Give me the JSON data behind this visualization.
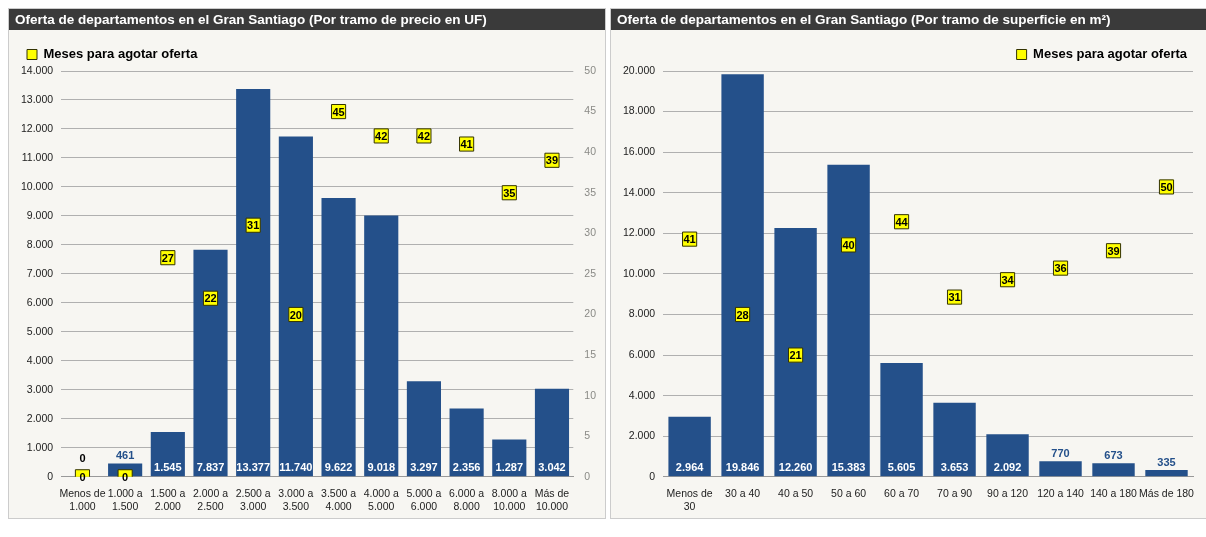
{
  "chart_data": [
    {
      "type": "bar",
      "title": "Oferta de departamentos en el Gran Santiago (Por tramo de precio en UF)",
      "categories": [
        "Menos de 1.000",
        "1.000 a 1.500",
        "1.500 a 2.000",
        "2.000 a 2.500",
        "2.500 a 3.000",
        "3.000 a 3.500",
        "3.500 a 4.000",
        "4.000 a 5.000",
        "5.000 a 6.000",
        "6.000 a 8.000",
        "8.000 a 10.000",
        "Más de 10.000"
      ],
      "series": [
        {
          "color": "#24508a",
          "values": [
            0,
            461,
            1545,
            7837,
            13377,
            11740,
            9622,
            9018,
            3297,
            2356,
            1287,
            3042
          ],
          "value_labels": [
            "0",
            "461",
            "1.545",
            "7.837",
            "13.377",
            "11.740",
            "9.622",
            "9.018",
            "3.297",
            "2.356",
            "1.287",
            "3.042"
          ]
        },
        {
          "type": "scatter",
          "name": "Meses para agotar oferta",
          "color": "#ffff00",
          "axis": "y2",
          "values": [
            0,
            0,
            27,
            22,
            31,
            20,
            45,
            42,
            42,
            41,
            35,
            39
          ],
          "value_labels": [
            "0",
            "0",
            "27",
            "22",
            "31",
            "20",
            "45",
            "42",
            "42",
            "41",
            "35",
            "39"
          ]
        }
      ],
      "ylim": [
        0,
        14000
      ],
      "yticks": [
        {
          "value": 0,
          "label": "0"
        },
        {
          "value": 1000,
          "label": "1.000"
        },
        {
          "value": 2000,
          "label": "2.000"
        },
        {
          "value": 3000,
          "label": "3.000"
        },
        {
          "value": 4000,
          "label": "4.000"
        },
        {
          "value": 5000,
          "label": "5.000"
        },
        {
          "value": 6000,
          "label": "6.000"
        },
        {
          "value": 7000,
          "label": "7.000"
        },
        {
          "value": 8000,
          "label": "8.000"
        },
        {
          "value": 9000,
          "label": "9.000"
        },
        {
          "value": 10000,
          "label": "10.000"
        },
        {
          "value": 11000,
          "label": "11.000"
        },
        {
          "value": 12000,
          "label": "12.000"
        },
        {
          "value": 13000,
          "label": "13.000"
        },
        {
          "value": 14000,
          "label": "14.000"
        }
      ],
      "y2lim": [
        0,
        50
      ],
      "y2ticks": [
        0,
        5,
        10,
        15,
        20,
        25,
        30,
        35,
        40,
        45,
        50
      ],
      "grid": "y",
      "legend": "top left",
      "marker": "square"
    },
    {
      "type": "bar",
      "title": "Oferta de departamentos en el Gran Santiago (Por tramo de superficie en m²)",
      "categories": [
        "Menos de 30",
        "30 a 40",
        "40 a 50",
        "50 a 60",
        "60 a 70",
        "70 a 90",
        "90 a 120",
        "120 a 140",
        "140 a 180",
        "Más de 180"
      ],
      "series": [
        {
          "color": "#24508a",
          "values": [
            2964,
            19846,
            12260,
            15383,
            5605,
            3653,
            2092,
            770,
            673,
            335
          ],
          "value_labels": [
            "2.964",
            "19.846",
            "12.260",
            "15.383",
            "5.605",
            "3.653",
            "2.092",
            "770",
            "673",
            "335"
          ]
        },
        {
          "type": "scatter",
          "name": "Meses para agotar oferta",
          "color": "#ffff00",
          "axis": "y2",
          "values": [
            41,
            28,
            21,
            40,
            44,
            31,
            34,
            36,
            39,
            50
          ],
          "value_labels": [
            "41",
            "28",
            "21",
            "40",
            "44",
            "31",
            "34",
            "36",
            "39",
            "50"
          ]
        }
      ],
      "ylim": [
        0,
        20000
      ],
      "yticks": [
        {
          "value": 0,
          "label": "0"
        },
        {
          "value": 2000,
          "label": "2.000"
        },
        {
          "value": 4000,
          "label": "4.000"
        },
        {
          "value": 6000,
          "label": "6.000"
        },
        {
          "value": 8000,
          "label": "8.000"
        },
        {
          "value": 10000,
          "label": "10.000"
        },
        {
          "value": 12000,
          "label": "12.000"
        },
        {
          "value": 14000,
          "label": "14.000"
        },
        {
          "value": 16000,
          "label": "16.000"
        },
        {
          "value": 18000,
          "label": "18.000"
        },
        {
          "value": 20000,
          "label": "20.000"
        }
      ],
      "y2lim": [
        0,
        70
      ],
      "tick_labels": "xy",
      "grid": "y",
      "legend": "top right",
      "marker": "square"
    }
  ]
}
